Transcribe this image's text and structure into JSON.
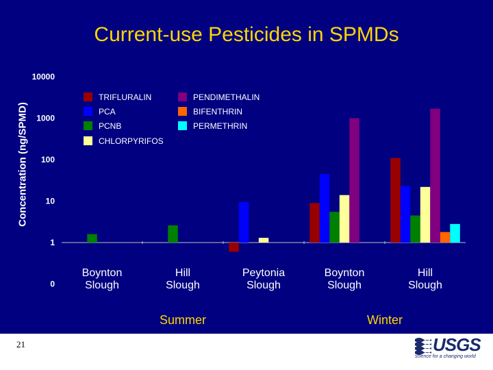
{
  "slide": {
    "title": "Current-use Pesticides in SPMDs",
    "slide_number": "21",
    "logo": {
      "text": "USGS",
      "tagline": "science for a changing world"
    }
  },
  "chart_data": {
    "type": "bar",
    "title": "Current-use Pesticides in SPMDs",
    "ylabel": "Concentration (ng/SPMD)",
    "xlabel": "",
    "yscale": "log",
    "ylim": [
      0.1,
      10000
    ],
    "y_ticks": [
      {
        "value": 0.1,
        "label": "0"
      },
      {
        "value": 1,
        "label": "1"
      },
      {
        "value": 10,
        "label": "10"
      },
      {
        "value": 100,
        "label": "100"
      },
      {
        "value": 1000,
        "label": "1000"
      },
      {
        "value": 10000,
        "label": "10000"
      }
    ],
    "categories": [
      "Boynton Slough",
      "Hill Slough",
      "Peytonia Slough",
      "Boynton Slough",
      "Hill Slough"
    ],
    "category_lines": [
      [
        "Boynton",
        "Slough"
      ],
      [
        "Hill",
        "Slough"
      ],
      [
        "Peytonia",
        "Slough"
      ],
      [
        "Boynton",
        "Slough"
      ],
      [
        "Hill",
        "Slough"
      ]
    ],
    "groups": [
      {
        "label": "Summer",
        "categories": [
          0,
          1,
          2
        ]
      },
      {
        "label": "Winter",
        "categories": [
          3,
          4
        ]
      }
    ],
    "series": [
      {
        "name": "TRIFLURALIN",
        "color": "#990000",
        "values": [
          null,
          null,
          0.6,
          9,
          110
        ]
      },
      {
        "name": "PCA",
        "color": "#0000ff",
        "values": [
          null,
          null,
          9.5,
          45,
          23
        ]
      },
      {
        "name": "PCNB",
        "color": "#008000",
        "values": [
          1.6,
          2.6,
          null,
          5.5,
          4.5
        ]
      },
      {
        "name": "CHLORPYRIFOS",
        "color": "#ffff99",
        "values": [
          null,
          null,
          1.3,
          14,
          22
        ]
      },
      {
        "name": "PENDIMETHALIN",
        "color": "#800080",
        "values": [
          null,
          null,
          null,
          1000,
          1700
        ]
      },
      {
        "name": "BIFENTHRIN",
        "color": "#ff6600",
        "values": [
          null,
          null,
          null,
          null,
          1.8
        ]
      },
      {
        "name": "PERMETHRIN",
        "color": "#00ffff",
        "values": [
          null,
          null,
          null,
          null,
          2.8
        ]
      }
    ],
    "legend_position": "top-left",
    "grid": false
  }
}
